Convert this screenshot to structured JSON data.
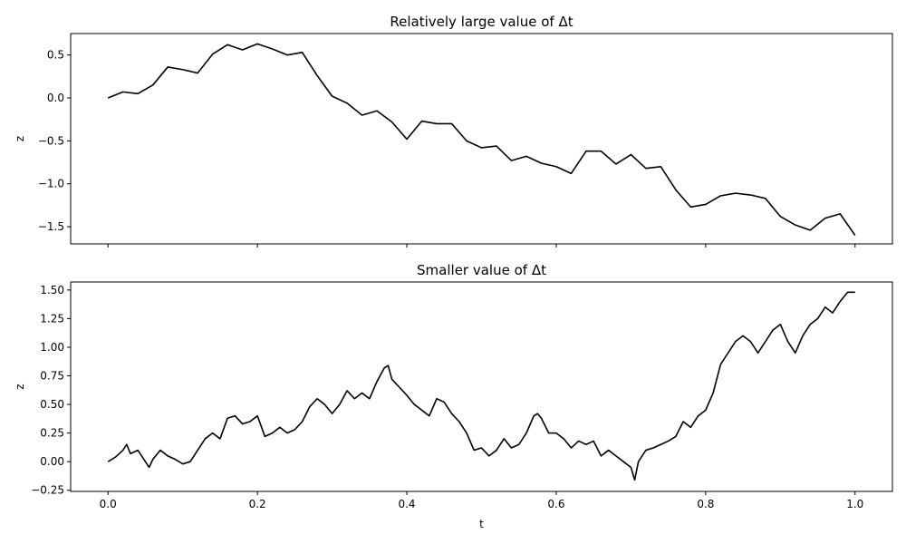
{
  "chart_data": [
    {
      "type": "line",
      "title": "Relatively large value of Δt",
      "xlabel": "",
      "ylabel": "z",
      "xlim": [
        -0.05,
        1.05
      ],
      "ylim": [
        -1.7,
        0.75
      ],
      "xticks": [
        0.0,
        0.2,
        0.4,
        0.6,
        0.8,
        1.0
      ],
      "xtick_labels_visible": false,
      "yticks": [
        -1.5,
        -1.0,
        -0.5,
        0.0,
        0.5
      ],
      "ytick_labels": [
        "−1.5",
        "−1.0",
        "−0.5",
        "0.0",
        "0.5"
      ],
      "grid": false,
      "color": "#000000",
      "series": [
        {
          "x": [
            0.0,
            0.02,
            0.04,
            0.06,
            0.08,
            0.1,
            0.12,
            0.14,
            0.16,
            0.18,
            0.2,
            0.22,
            0.24,
            0.26,
            0.28,
            0.3,
            0.32,
            0.34,
            0.36,
            0.38,
            0.4,
            0.42,
            0.44,
            0.46,
            0.48,
            0.5,
            0.52,
            0.54,
            0.56,
            0.58,
            0.6,
            0.62,
            0.64,
            0.66,
            0.68,
            0.7,
            0.72,
            0.74,
            0.76,
            0.78,
            0.8,
            0.82,
            0.84,
            0.86,
            0.88,
            0.9,
            0.92,
            0.94,
            0.96,
            0.98,
            1.0
          ],
          "y": [
            0.0,
            0.07,
            0.05,
            0.15,
            0.36,
            0.33,
            0.29,
            0.51,
            0.62,
            0.56,
            0.63,
            0.57,
            0.5,
            0.53,
            0.26,
            0.02,
            -0.06,
            -0.2,
            -0.15,
            -0.28,
            -0.48,
            -0.27,
            -0.3,
            -0.3,
            -0.5,
            -0.58,
            -0.56,
            -0.73,
            -0.68,
            -0.76,
            -0.8,
            -0.88,
            -0.62,
            -0.62,
            -0.77,
            -0.66,
            -0.82,
            -0.8,
            -1.07,
            -1.27,
            -1.24,
            -1.14,
            -1.11,
            -1.13,
            -1.17,
            -1.38,
            -1.48,
            -1.54,
            -1.4,
            -1.35,
            -1.6
          ]
        }
      ]
    },
    {
      "type": "line",
      "title": "Smaller value of Δt",
      "xlabel": "t",
      "ylabel": "z",
      "xlim": [
        -0.05,
        1.05
      ],
      "ylim": [
        -0.26,
        1.57
      ],
      "xticks": [
        0.0,
        0.2,
        0.4,
        0.6,
        0.8,
        1.0
      ],
      "xtick_labels": [
        "0.0",
        "0.2",
        "0.4",
        "0.6",
        "0.8",
        "1.0"
      ],
      "yticks": [
        -0.25,
        0.0,
        0.25,
        0.5,
        0.75,
        1.0,
        1.25,
        1.5
      ],
      "ytick_labels": [
        "−0.25",
        "0.00",
        "0.25",
        "0.50",
        "0.75",
        "1.00",
        "1.25",
        "1.50"
      ],
      "grid": false,
      "color": "#000000",
      "series": [
        {
          "x": [
            0.0,
            0.01,
            0.02,
            0.025,
            0.03,
            0.04,
            0.05,
            0.055,
            0.06,
            0.07,
            0.08,
            0.09,
            0.1,
            0.11,
            0.12,
            0.13,
            0.14,
            0.15,
            0.16,
            0.17,
            0.18,
            0.19,
            0.2,
            0.21,
            0.22,
            0.23,
            0.24,
            0.25,
            0.26,
            0.27,
            0.28,
            0.29,
            0.3,
            0.31,
            0.32,
            0.33,
            0.34,
            0.35,
            0.36,
            0.37,
            0.375,
            0.38,
            0.39,
            0.4,
            0.41,
            0.42,
            0.43,
            0.44,
            0.45,
            0.46,
            0.47,
            0.48,
            0.49,
            0.5,
            0.51,
            0.52,
            0.53,
            0.54,
            0.55,
            0.56,
            0.57,
            0.575,
            0.58,
            0.59,
            0.6,
            0.61,
            0.62,
            0.63,
            0.64,
            0.65,
            0.66,
            0.67,
            0.68,
            0.69,
            0.7,
            0.705,
            0.71,
            0.72,
            0.73,
            0.74,
            0.75,
            0.76,
            0.77,
            0.78,
            0.79,
            0.8,
            0.81,
            0.82,
            0.83,
            0.84,
            0.85,
            0.86,
            0.87,
            0.88,
            0.89,
            0.9,
            0.91,
            0.92,
            0.93,
            0.94,
            0.95,
            0.96,
            0.97,
            0.98,
            0.99,
            1.0
          ],
          "y": [
            0.0,
            0.04,
            0.1,
            0.15,
            0.07,
            0.1,
            0.0,
            -0.05,
            0.02,
            0.1,
            0.05,
            0.02,
            -0.02,
            0.0,
            0.1,
            0.2,
            0.25,
            0.2,
            0.38,
            0.4,
            0.33,
            0.35,
            0.4,
            0.22,
            0.25,
            0.3,
            0.25,
            0.28,
            0.35,
            0.48,
            0.55,
            0.5,
            0.42,
            0.5,
            0.62,
            0.55,
            0.6,
            0.55,
            0.7,
            0.82,
            0.84,
            0.72,
            0.65,
            0.58,
            0.5,
            0.45,
            0.4,
            0.55,
            0.52,
            0.42,
            0.35,
            0.25,
            0.1,
            0.12,
            0.05,
            0.1,
            0.2,
            0.12,
            0.15,
            0.25,
            0.4,
            0.42,
            0.38,
            0.25,
            0.25,
            0.2,
            0.12,
            0.18,
            0.15,
            0.18,
            0.05,
            0.1,
            0.05,
            0.0,
            -0.05,
            -0.16,
            0.0,
            0.1,
            0.12,
            0.15,
            0.18,
            0.22,
            0.35,
            0.3,
            0.4,
            0.45,
            0.6,
            0.85,
            0.95,
            1.05,
            1.1,
            1.05,
            0.95,
            1.05,
            1.15,
            1.2,
            1.05,
            0.95,
            1.1,
            1.2,
            1.25,
            1.35,
            1.3,
            1.4,
            1.48,
            1.48
          ]
        }
      ]
    }
  ]
}
